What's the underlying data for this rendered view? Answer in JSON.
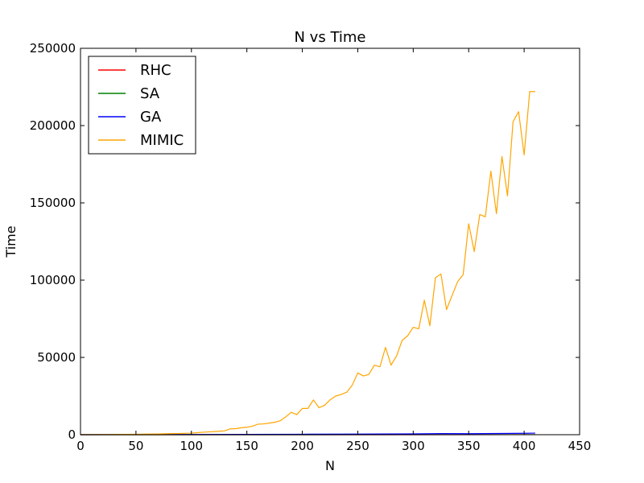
{
  "chart_data": {
    "type": "line",
    "title": "N vs Time",
    "xlabel": "N",
    "ylabel": "Time",
    "xlim": [
      0,
      450
    ],
    "ylim": [
      0,
      250000
    ],
    "xticks": [
      0,
      50,
      100,
      150,
      200,
      250,
      300,
      350,
      400,
      450
    ],
    "yticks": [
      0,
      50000,
      100000,
      150000,
      200000,
      250000
    ],
    "grid": false,
    "legend_position": "top-left",
    "series": [
      {
        "name": "RHC",
        "color": "#ff0000",
        "x": [
          0,
          100,
          200,
          300,
          410
        ],
        "y": [
          0,
          5,
          10,
          15,
          20
        ]
      },
      {
        "name": "SA",
        "color": "#008000",
        "x": [
          0,
          100,
          200,
          300,
          410
        ],
        "y": [
          0,
          5,
          10,
          20,
          30
        ]
      },
      {
        "name": "GA",
        "color": "#0000ff",
        "x": [
          0,
          50,
          100,
          150,
          200,
          250,
          300,
          325,
          350,
          400,
          410
        ],
        "y": [
          0,
          50,
          120,
          200,
          300,
          400,
          550,
          700,
          650,
          900,
          1000
        ]
      },
      {
        "name": "MIMIC",
        "color": "#ffa500",
        "x": [
          0,
          10,
          20,
          30,
          40,
          50,
          60,
          70,
          80,
          90,
          100,
          105,
          110,
          115,
          120,
          125,
          130,
          135,
          140,
          145,
          150,
          155,
          160,
          165,
          170,
          175,
          180,
          185,
          190,
          195,
          200,
          205,
          210,
          215,
          220,
          225,
          230,
          235,
          240,
          245,
          250,
          255,
          260,
          265,
          270,
          275,
          280,
          285,
          290,
          295,
          300,
          305,
          310,
          315,
          320,
          325,
          330,
          335,
          340,
          345,
          350,
          355,
          360,
          365,
          370,
          375,
          380,
          385,
          390,
          395,
          400,
          405,
          410
        ],
        "y": [
          0,
          50,
          100,
          150,
          200,
          300,
          400,
          500,
          700,
          800,
          1000,
          1300,
          1600,
          1800,
          2000,
          2200,
          2500,
          3800,
          3900,
          4500,
          4800,
          5500,
          6800,
          7000,
          7500,
          8000,
          9000,
          11500,
          14500,
          13000,
          17000,
          17000,
          22500,
          17500,
          19000,
          22500,
          25000,
          26000,
          27500,
          32000,
          40000,
          38000,
          39000,
          45000,
          44000,
          56500,
          45000,
          51000,
          61000,
          64000,
          69500,
          68500,
          87000,
          70500,
          101500,
          104000,
          81000,
          90000,
          99000,
          103500,
          136500,
          118500,
          142500,
          141000,
          170500,
          143000,
          180000,
          154500,
          202500,
          209000,
          181000,
          222000,
          222000
        ]
      }
    ]
  }
}
